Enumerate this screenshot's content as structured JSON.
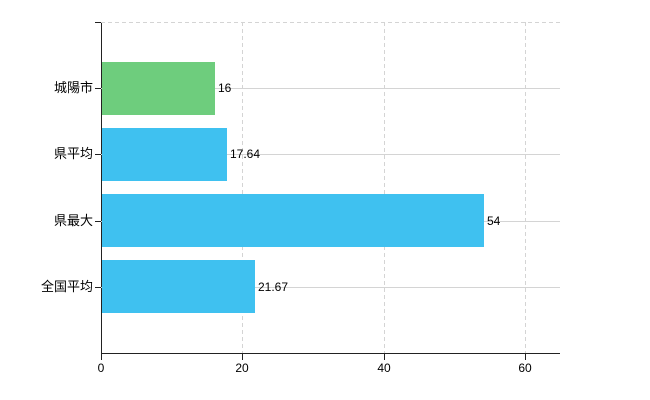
{
  "chart_data": {
    "type": "bar",
    "orientation": "horizontal",
    "title": "",
    "categories": [
      "城陽市",
      "県平均",
      "県最大",
      "全国平均"
    ],
    "values": [
      16,
      17.64,
      54,
      21.67
    ],
    "value_labels": [
      "16",
      "17.64",
      "54",
      "21.67"
    ],
    "bar_colors": [
      "#6ecd7d",
      "#3fc1f0",
      "#3fc1f0",
      "#3fc1f0"
    ],
    "xlim": [
      0,
      60
    ],
    "x_ticks": [
      0,
      20,
      40,
      60
    ],
    "grid": true,
    "legend": "none",
    "colors": {
      "highlight_bar": "#6ecd7d",
      "default_bar": "#3fc1f0",
      "gridline": "#d4d4d4",
      "axis": "#222222",
      "text": "#000000",
      "background": "#ffffff"
    }
  }
}
